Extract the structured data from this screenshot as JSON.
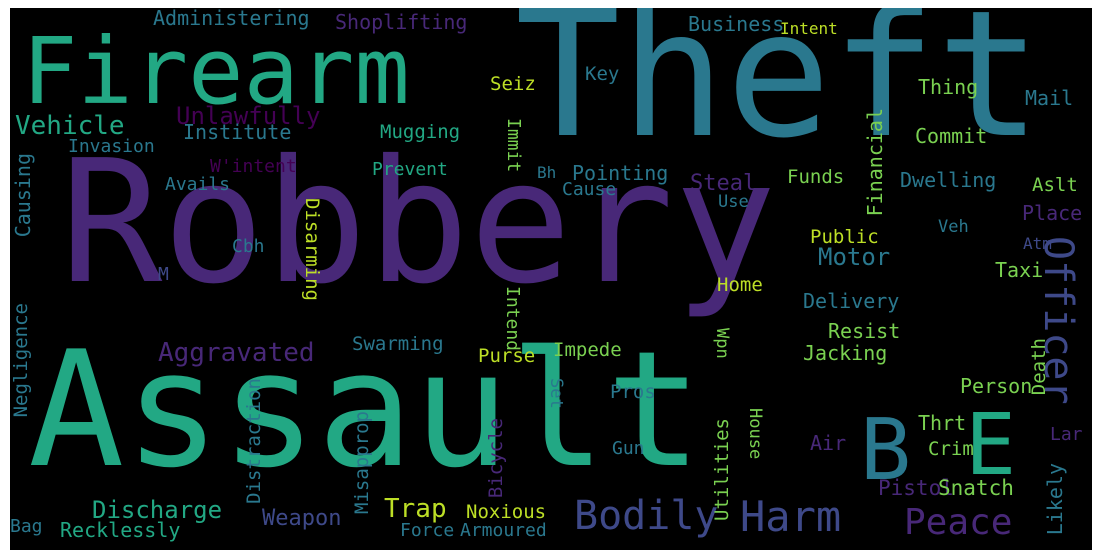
{
  "colors": {
    "background": "#000000",
    "purple": "#482878",
    "deep_purple": "#440154",
    "teal": "#2a788e",
    "blue": "#3e4989",
    "green": "#22a884",
    "lime": "#7ad151",
    "yellow": "#bddf26",
    "gold": "#fde725"
  },
  "words": {
    "robbery": "Robbery",
    "theft": "Theft",
    "assault": "Assault",
    "firearm": "Firearm",
    "b": "B",
    "e": "E",
    "officer": "Officer",
    "harm": "Harm",
    "bodily": "Bodily",
    "peace": "Peace",
    "aggravated": "Aggravated",
    "vehicle": "Vehicle",
    "unlawfully": "Unlawfully",
    "administering": "Administering",
    "shoplifting": "Shoplifting",
    "business": "Business",
    "intent": "Intent",
    "seiz": "Seiz",
    "key": "Key",
    "thing": "Thing",
    "mail": "Mail",
    "institute": "Institute",
    "invasion": "Invasion",
    "mugging": "Mugging",
    "immit": "Immit",
    "financial": "Financial",
    "commit": "Commit",
    "causing": "Causing",
    "wintent": "W'intent",
    "prevent": "Prevent",
    "bh": "Bh",
    "pointing": "Pointing",
    "cause": "Cause",
    "steal": "Steal",
    "funds": "Funds",
    "dwelling": "Dwelling",
    "aslt": "Aslt",
    "avails": "Avails",
    "use": "Use",
    "veh": "Veh",
    "disarming": "Disarming",
    "place": "Place",
    "cbh": "Cbh",
    "public": "Public",
    "atm": "Atm",
    "m": "M",
    "motor": "Motor",
    "taxi": "Taxi",
    "home": "Home",
    "delivery": "Delivery",
    "intend": "Intend",
    "negligence": "Negligence",
    "resist": "Resist",
    "swarming": "Swarming",
    "impede": "Impede",
    "purse": "Purse",
    "wpn": "Wpn",
    "jacking": "Jacking",
    "death": "Death",
    "distraction": "Distraction",
    "set": "Set",
    "pros": "Pros",
    "person": "Person",
    "misapprop": "Misapprop",
    "bicycle": "Bicycle",
    "house": "House",
    "thrt": "Thrt",
    "utilities": "Utilities",
    "crim": "Crim",
    "gun": "Gun",
    "air": "Air",
    "lar": "Lar",
    "discharge": "Discharge",
    "trap": "Trap",
    "pistol": "Pistol",
    "snatch": "Snatch",
    "likely": "Likely",
    "bag": "Bag",
    "recklessly": "Recklessly",
    "weapon": "Weapon",
    "force": "Force",
    "noxious": "Noxious",
    "armoured": "Armoured"
  }
}
